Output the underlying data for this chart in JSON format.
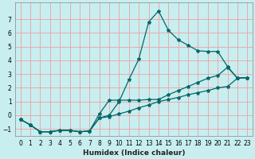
{
  "xlabel": "Humidex (Indice chaleur)",
  "background_color": "#c8eef0",
  "grid_color": "#f0a0a0",
  "line_color": "#006868",
  "xlim": [
    -0.5,
    23.5
  ],
  "ylim": [
    -1.5,
    8.2
  ],
  "yticks": [
    -1,
    0,
    1,
    2,
    3,
    4,
    5,
    6,
    7
  ],
  "xticks": [
    0,
    1,
    2,
    3,
    4,
    5,
    6,
    7,
    8,
    9,
    10,
    11,
    12,
    13,
    14,
    15,
    16,
    17,
    18,
    19,
    20,
    21,
    22,
    23
  ],
  "series_peak_x": [
    0,
    1,
    2,
    3,
    4,
    5,
    6,
    7,
    8,
    9,
    10,
    11,
    12,
    13,
    14,
    15,
    16,
    17,
    18,
    19,
    20,
    21,
    22,
    23
  ],
  "series_peak_y": [
    -0.3,
    -0.7,
    -1.2,
    -1.2,
    -1.1,
    -1.1,
    -1.2,
    -1.15,
    -0.2,
    0.0,
    1.0,
    2.6,
    4.1,
    6.8,
    7.6,
    6.2,
    5.5,
    5.1,
    4.7,
    4.65,
    4.65,
    3.55,
    2.7,
    2.75
  ],
  "series_mid_x": [
    0,
    1,
    2,
    3,
    4,
    5,
    6,
    7,
    8,
    9,
    10,
    11,
    12,
    13,
    14,
    15,
    16,
    17,
    18,
    19,
    20,
    21,
    22,
    23
  ],
  "series_mid_y": [
    -0.3,
    -0.7,
    -1.2,
    -1.2,
    -1.1,
    -1.1,
    -1.2,
    -1.15,
    0.1,
    1.1,
    1.1,
    1.1,
    1.1,
    1.15,
    1.15,
    1.5,
    1.8,
    2.1,
    2.4,
    2.7,
    2.9,
    3.5,
    2.7,
    2.75
  ],
  "series_low_x": [
    0,
    1,
    2,
    3,
    4,
    5,
    6,
    7,
    8,
    9,
    10,
    11,
    12,
    13,
    14,
    15,
    16,
    17,
    18,
    19,
    20,
    21,
    22,
    23
  ],
  "series_low_y": [
    -0.3,
    -0.7,
    -1.2,
    -1.2,
    -1.1,
    -1.1,
    -1.2,
    -1.15,
    -0.2,
    -0.1,
    0.1,
    0.3,
    0.55,
    0.75,
    1.0,
    1.15,
    1.3,
    1.5,
    1.65,
    1.8,
    2.0,
    2.1,
    2.7,
    2.75
  ]
}
